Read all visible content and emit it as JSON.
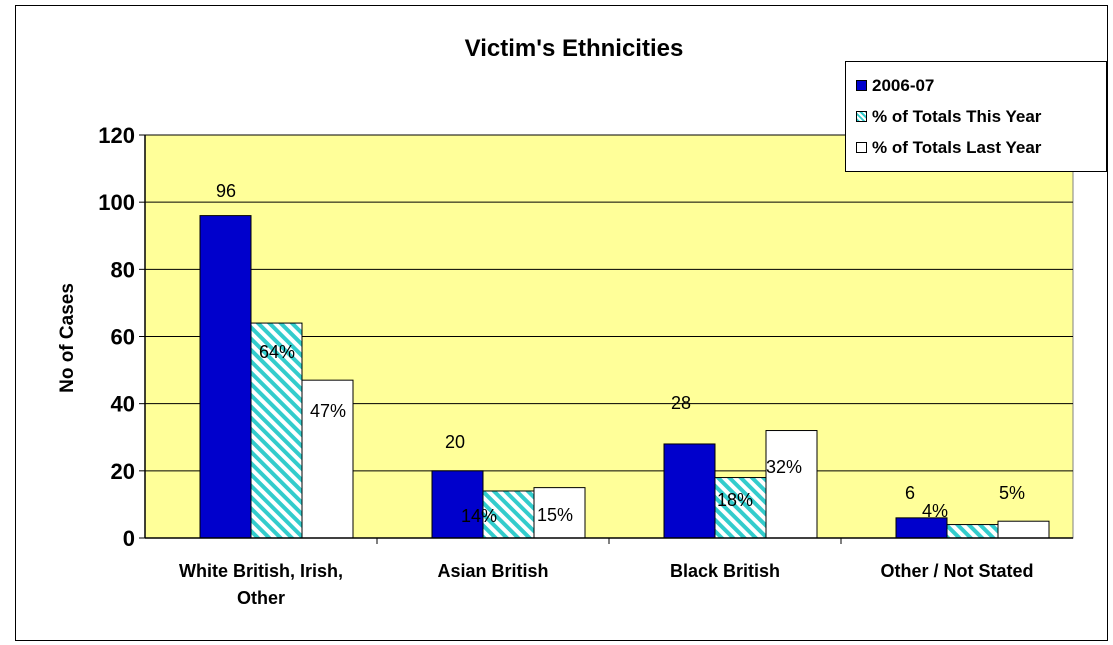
{
  "chart_data": {
    "type": "bar",
    "title": "Victim's Ethnicities",
    "xlabel": "",
    "ylabel": "No of Cases",
    "ylim": [
      0,
      120
    ],
    "yticks": [
      0,
      20,
      40,
      60,
      80,
      100,
      120
    ],
    "grid": true,
    "legend_position": "top-right",
    "plot_background": "#FFFF99",
    "categories": [
      "White British, Irish, Other",
      "Asian British",
      "Black British",
      "Other / Not Stated"
    ],
    "series": [
      {
        "name": "2006-07",
        "values": [
          96,
          20,
          28,
          6
        ],
        "labels": [
          "96",
          "20",
          "28",
          "6"
        ],
        "color": "#0000CC",
        "pattern": "solid"
      },
      {
        "name": "% of Totals This Year",
        "values": [
          64,
          14,
          18,
          4
        ],
        "labels": [
          "64%",
          "14%",
          "18%",
          "4%"
        ],
        "color": "#33CCCC",
        "pattern": "diagonal-stripes"
      },
      {
        "name": "% of Totals Last Year",
        "values": [
          47,
          15,
          32,
          5
        ],
        "labels": [
          "47%",
          "15%",
          "32%",
          "5%"
        ],
        "color": "#FFFFFF",
        "pattern": "solid"
      }
    ]
  }
}
